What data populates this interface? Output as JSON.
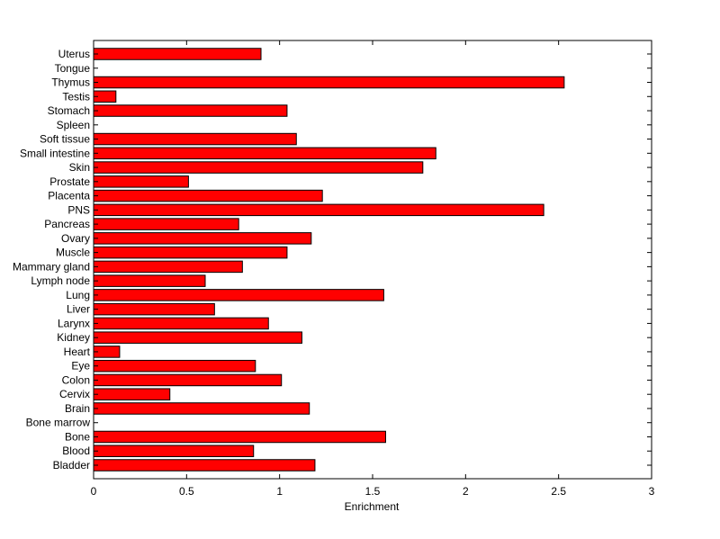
{
  "chart_data": {
    "type": "bar",
    "orientation": "horizontal",
    "title": "",
    "xlabel": "Enrichment",
    "ylabel": "",
    "xlim": [
      0,
      3
    ],
    "xticks": [
      0,
      0.5,
      1,
      1.5,
      2,
      2.5,
      3
    ],
    "xtick_labels": [
      "0",
      "0.5",
      "1",
      "1.5",
      "2",
      "2.5",
      "3"
    ],
    "grid": false,
    "bar_color": "#ff0000",
    "edge_color": "#000000",
    "categories": [
      "Bladder",
      "Blood",
      "Bone",
      "Bone marrow",
      "Brain",
      "Cervix",
      "Colon",
      "Eye",
      "Heart",
      "Kidney",
      "Larynx",
      "Liver",
      "Lung",
      "Lymph node",
      "Mammary gland",
      "Muscle",
      "Ovary",
      "Pancreas",
      "PNS",
      "Placenta",
      "Prostate",
      "Skin",
      "Small intestine",
      "Soft tissue",
      "Spleen",
      "Stomach",
      "Testis",
      "Thymus",
      "Tongue",
      "Uterus"
    ],
    "values": [
      1.19,
      0.86,
      1.57,
      0,
      1.16,
      0.41,
      1.01,
      0.87,
      0.14,
      1.12,
      0.94,
      0.65,
      1.56,
      0.6,
      0.8,
      1.04,
      1.17,
      0.78,
      2.42,
      1.23,
      0.51,
      1.77,
      1.84,
      1.09,
      0,
      1.04,
      0.12,
      2.53,
      0,
      0.9
    ]
  }
}
